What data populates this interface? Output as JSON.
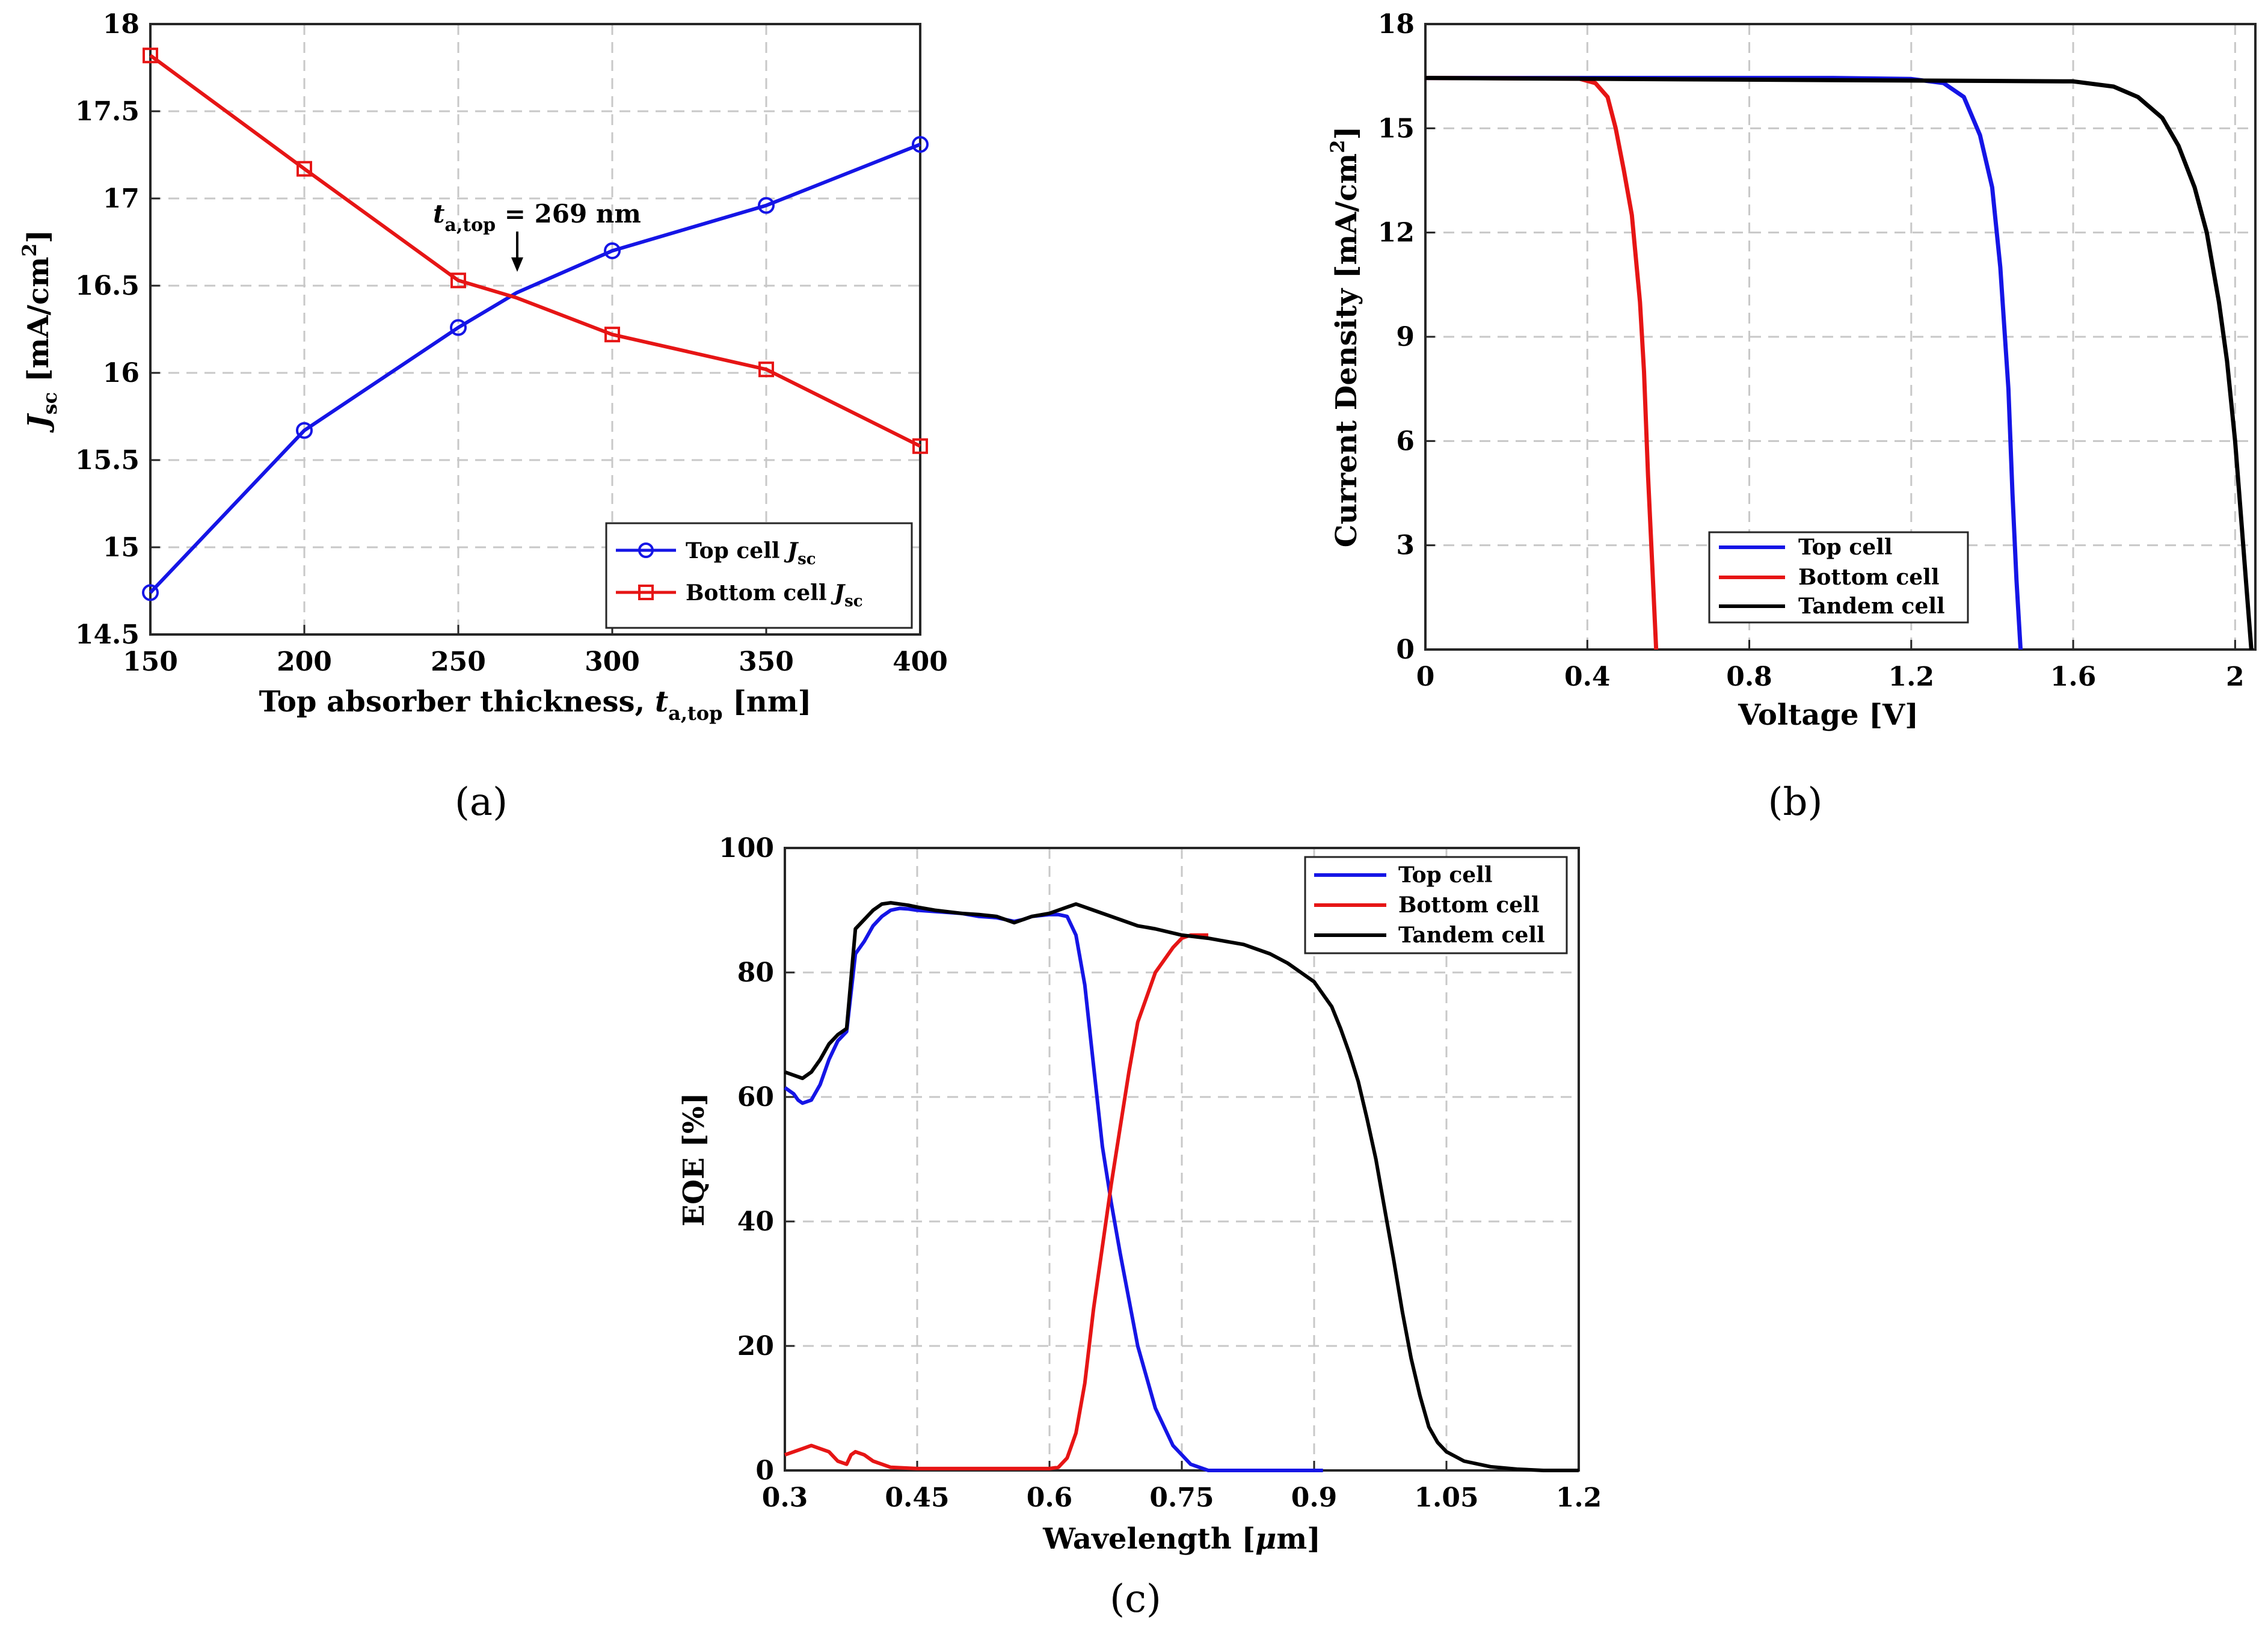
{
  "chart_data": [
    {
      "id": "a",
      "type": "line",
      "caption": "(a)",
      "x": [
        150,
        200,
        250,
        300,
        350,
        400
      ],
      "series": [
        {
          "name": "Top cell J_sc",
          "legend_main": "Top cell ",
          "legend_var": "J",
          "legend_sub": "sc",
          "color": "#1515e6",
          "marker": "circle",
          "x": [
            150,
            200,
            250,
            269,
            300,
            350,
            400
          ],
          "y": [
            14.74,
            15.67,
            16.26,
            16.46,
            16.7,
            16.96,
            17.31
          ]
        },
        {
          "name": "Bottom cell J_sc",
          "legend_main": "Bottom cell ",
          "legend_var": "J",
          "legend_sub": "sc",
          "color": "#e61515",
          "marker": "square",
          "x": [
            150,
            200,
            250,
            269,
            300,
            350,
            400
          ],
          "y": [
            17.82,
            17.17,
            16.53,
            16.43,
            16.22,
            16.02,
            15.58
          ]
        }
      ],
      "xlim": [
        150,
        400
      ],
      "ylim": [
        14.5,
        18
      ],
      "xticks": [
        "150",
        "200",
        "250",
        "300",
        "350",
        "400"
      ],
      "yticks": [
        "14.5",
        "15",
        "15.5",
        "16",
        "16.5",
        "17",
        "17.5",
        "18"
      ],
      "xlabel_main": "Top absorber thickness, ",
      "xlabel_var": "t",
      "xlabel_sub": "a,top",
      "xlabel_end": " [nm]",
      "ylabel_var": "J",
      "ylabel_sub": "sc",
      "ylabel_end": " [mA/cm",
      "ylabel_sup": "2",
      "ylabel_close": "]",
      "annotation": {
        "var": "t",
        "sub": "a,top",
        "text": " = 269 nm",
        "x": 269,
        "y": 16.45
      },
      "legend_position": "lower-right"
    },
    {
      "id": "b",
      "type": "line",
      "caption": "(b)",
      "series": [
        {
          "name": "Top cell",
          "color": "#1515e6",
          "x": [
            0,
            1.0,
            1.2,
            1.28,
            1.33,
            1.37,
            1.4,
            1.42,
            1.44,
            1.45,
            1.46,
            1.47
          ],
          "y": [
            16.45,
            16.45,
            16.42,
            16.3,
            15.9,
            14.8,
            13.3,
            11.0,
            7.5,
            4.5,
            2.0,
            0
          ]
        },
        {
          "name": "Bottom cell",
          "color": "#e61515",
          "x": [
            0,
            0.38,
            0.42,
            0.45,
            0.47,
            0.49,
            0.51,
            0.53,
            0.54,
            0.55,
            0.56,
            0.57
          ],
          "y": [
            16.45,
            16.43,
            16.3,
            15.9,
            15.0,
            13.8,
            12.5,
            10.0,
            8.0,
            5.0,
            2.5,
            0
          ]
        },
        {
          "name": "Tandem cell",
          "color": "#000000",
          "x": [
            0,
            1.6,
            1.7,
            1.76,
            1.82,
            1.86,
            1.9,
            1.93,
            1.96,
            1.98,
            2.0,
            2.01,
            2.02,
            2.03,
            2.04
          ],
          "y": [
            16.45,
            16.35,
            16.2,
            15.9,
            15.3,
            14.5,
            13.3,
            12.0,
            10.0,
            8.3,
            6.0,
            4.5,
            3.0,
            1.5,
            0
          ]
        }
      ],
      "xlim": [
        0,
        2.05
      ],
      "ylim": [
        0,
        18
      ],
      "xticks": [
        "0",
        "0.4",
        "0.8",
        "1.2",
        "1.6",
        "2"
      ],
      "xtick_values": [
        0,
        0.4,
        0.8,
        1.2,
        1.6,
        2.0
      ],
      "yticks": [
        "0",
        "3",
        "6",
        "9",
        "12",
        "15",
        "18"
      ],
      "xlabel": "Voltage [V]",
      "ylabel_main": "Current Density [mA/cm",
      "ylabel_sup": "2",
      "ylabel_close": "]",
      "legend_position": "lower-right"
    },
    {
      "id": "c",
      "type": "line",
      "caption": "(c)",
      "series": [
        {
          "name": "Top cell",
          "color": "#1515e6",
          "x": [
            0.3,
            0.31,
            0.315,
            0.32,
            0.33,
            0.34,
            0.35,
            0.36,
            0.37,
            0.38,
            0.39,
            0.4,
            0.41,
            0.42,
            0.43,
            0.44,
            0.45,
            0.47,
            0.5,
            0.52,
            0.54,
            0.55,
            0.56,
            0.57,
            0.58,
            0.6,
            0.61,
            0.62,
            0.63,
            0.64,
            0.65,
            0.66,
            0.67,
            0.68,
            0.7,
            0.72,
            0.74,
            0.75,
            0.76,
            0.78,
            0.8,
            0.85,
            0.91
          ],
          "y": [
            61.5,
            60.5,
            59.5,
            59.0,
            59.5,
            62,
            66,
            69,
            70.5,
            83,
            85,
            87.5,
            89,
            90,
            90.3,
            90.2,
            90,
            89.8,
            89.5,
            89,
            88.8,
            88.5,
            88.2,
            88.5,
            89,
            89.3,
            89.3,
            89,
            86,
            78,
            65,
            52,
            43,
            35,
            20,
            10,
            4,
            2.5,
            1,
            0,
            0,
            0,
            0
          ]
        },
        {
          "name": "Bottom cell",
          "color": "#e61515",
          "x": [
            0.3,
            0.31,
            0.32,
            0.33,
            0.34,
            0.35,
            0.36,
            0.37,
            0.375,
            0.38,
            0.39,
            0.4,
            0.42,
            0.45,
            0.5,
            0.55,
            0.6,
            0.61,
            0.62,
            0.63,
            0.64,
            0.65,
            0.66,
            0.67,
            0.68,
            0.69,
            0.7,
            0.72,
            0.74,
            0.75,
            0.76,
            0.77,
            0.78
          ],
          "y": [
            2.5,
            3,
            3.5,
            4,
            3.5,
            3,
            1.5,
            1,
            2.5,
            3,
            2.5,
            1.5,
            0.5,
            0.3,
            0.3,
            0.3,
            0.3,
            0.5,
            2,
            6,
            14,
            26,
            36,
            46,
            55,
            64,
            72,
            80,
            84,
            85.5,
            86,
            86,
            86
          ]
        },
        {
          "name": "Tandem cell",
          "color": "#000000",
          "x": [
            0.3,
            0.31,
            0.32,
            0.33,
            0.34,
            0.35,
            0.36,
            0.37,
            0.38,
            0.39,
            0.4,
            0.41,
            0.42,
            0.43,
            0.44,
            0.45,
            0.47,
            0.5,
            0.52,
            0.54,
            0.55,
            0.56,
            0.57,
            0.58,
            0.6,
            0.62,
            0.63,
            0.64,
            0.65,
            0.68,
            0.7,
            0.72,
            0.75,
            0.78,
            0.8,
            0.82,
            0.85,
            0.87,
            0.88,
            0.9,
            0.92,
            0.93,
            0.94,
            0.95,
            0.96,
            0.97,
            0.98,
            0.99,
            1.0,
            1.01,
            1.02,
            1.03,
            1.04,
            1.05,
            1.07,
            1.1,
            1.13,
            1.16,
            1.2
          ],
          "y": [
            64,
            63.5,
            63,
            64,
            66,
            68.5,
            70,
            71,
            87,
            88.5,
            90,
            91,
            91.2,
            91,
            90.8,
            90.5,
            90,
            89.5,
            89.3,
            89,
            88.5,
            88,
            88.5,
            89,
            89.5,
            90.5,
            91,
            90.5,
            90,
            88.5,
            87.5,
            87,
            86,
            85.5,
            85,
            84.5,
            83,
            81.5,
            80.5,
            78.5,
            74.5,
            71,
            67,
            62.5,
            56.5,
            50,
            42,
            34,
            25.5,
            18,
            12,
            7,
            4.5,
            3,
            1.5,
            0.6,
            0.2,
            0,
            0
          ]
        }
      ],
      "xlim": [
        0.3,
        1.2
      ],
      "ylim": [
        0,
        100
      ],
      "xticks": [
        "0.3",
        "0.45",
        "0.6",
        "0.75",
        "0.9",
        "1.05",
        "1.2"
      ],
      "xtick_values": [
        0.3,
        0.45,
        0.6,
        0.75,
        0.9,
        1.05,
        1.2
      ],
      "yticks": [
        "0",
        "20",
        "40",
        "60",
        "80",
        "100"
      ],
      "xlabel_main": "Wavelength [",
      "xlabel_mu": "μ",
      "xlabel_end": "m]",
      "ylabel": "EQE [%]",
      "legend_position": "top-right"
    }
  ]
}
